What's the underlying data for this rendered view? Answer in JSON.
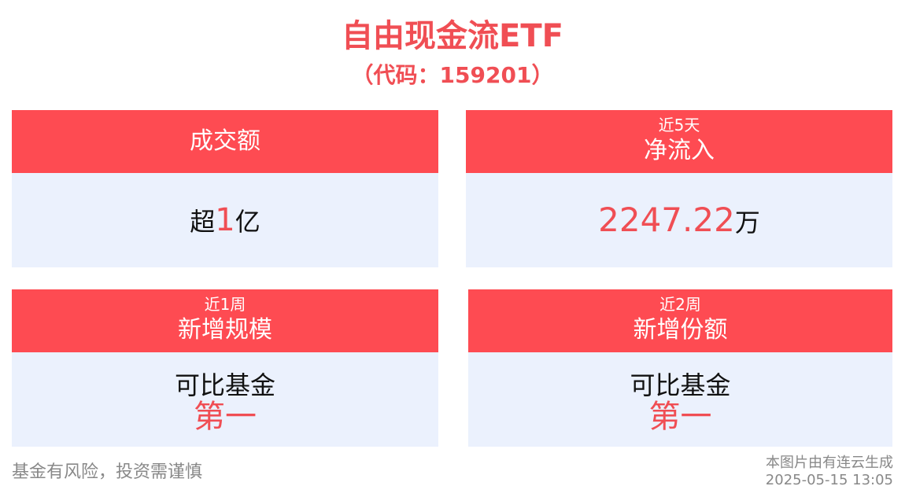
{
  "header": {
    "title": "自由现金流ETF",
    "subtitle": "（代码：159201）"
  },
  "cards": [
    {
      "head_main": "成交额",
      "value_prefix": "超",
      "value_number": "1",
      "value_suffix": "亿"
    },
    {
      "head_period": "近5天",
      "head_main": "净流入",
      "value_number": "2247.22",
      "value_suffix": "万"
    },
    {
      "head_period": "近1周",
      "head_main": "新增规模",
      "rank_text": "可比基金",
      "rank_value": "第一"
    },
    {
      "head_period": "近2周",
      "head_main": "新增份额",
      "rank_text": "可比基金",
      "rank_value": "第一"
    }
  ],
  "footer": {
    "disclaimer": "基金有风险，投资需谨慎",
    "generated_by": "本图片由有连云生成",
    "timestamp": "2025-05-15 13:05"
  },
  "colors": {
    "accent": "#fe4b52",
    "highlight_text": "#f04e54",
    "card_body": "#ebf1fd",
    "muted_text": "#888888"
  }
}
